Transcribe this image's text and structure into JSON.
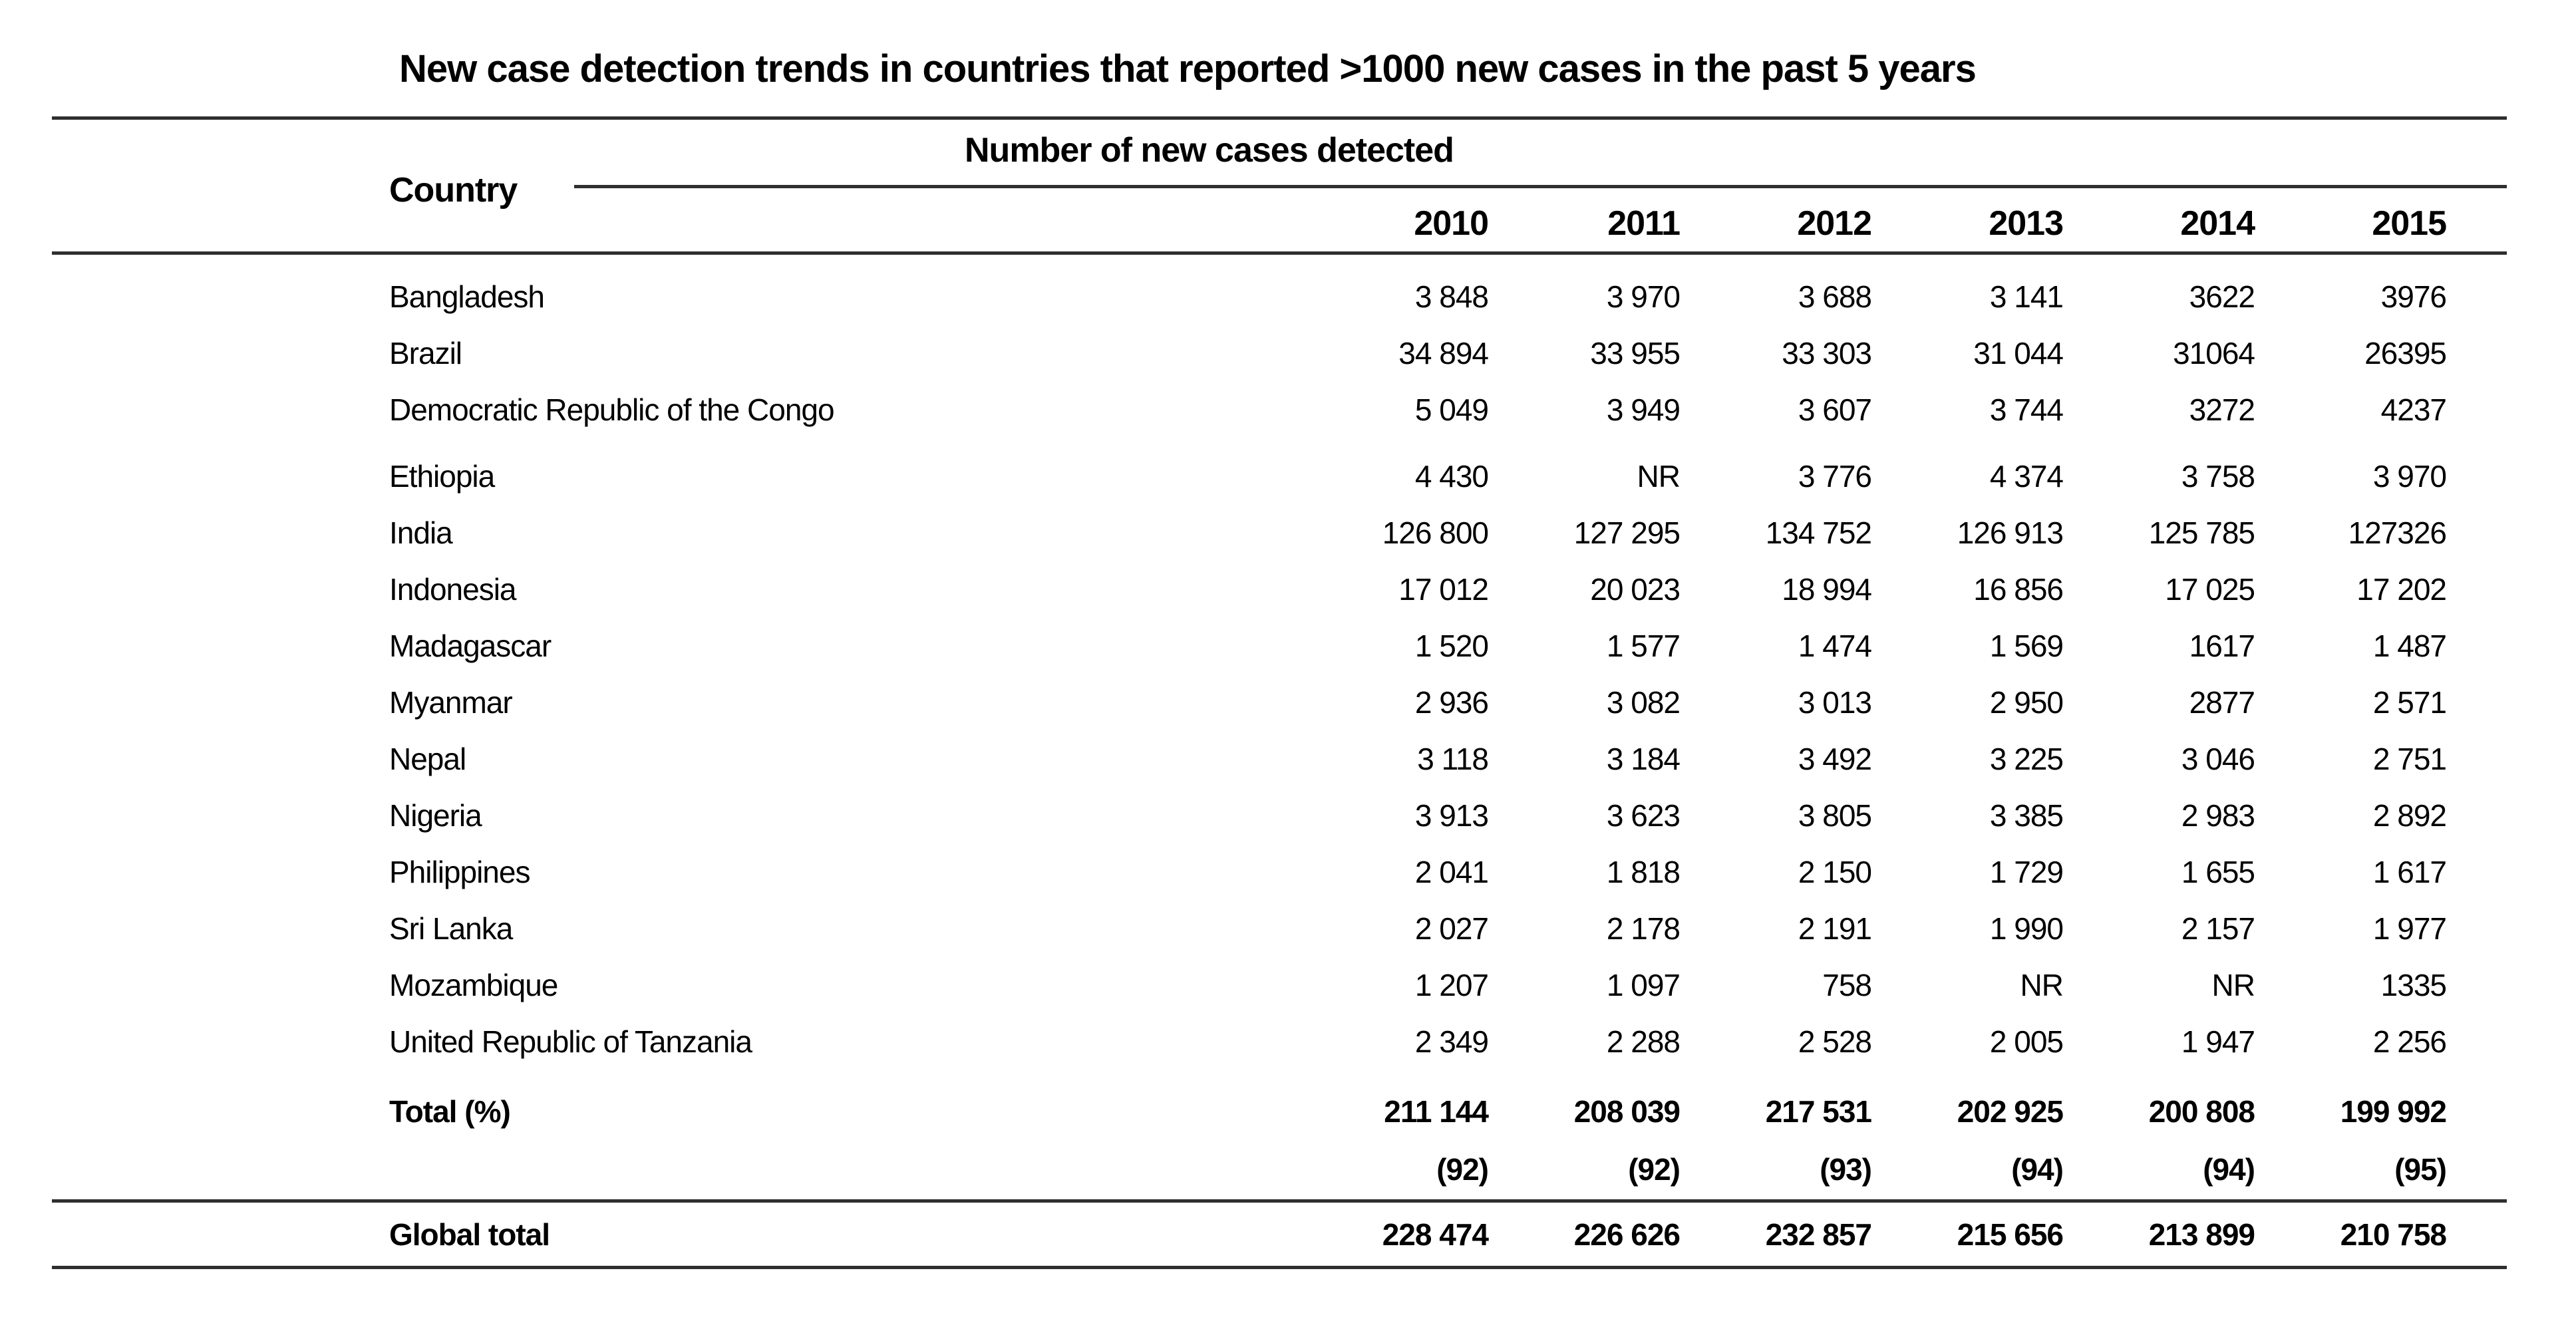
{
  "title": "New case detection trends in countries that reported >1000 new cases in the past 5 years",
  "table": {
    "country_header": "Country",
    "group_header": "Number of new cases detected",
    "years": [
      "2010",
      "2011",
      "2012",
      "2013",
      "2014",
      "2015"
    ],
    "rows": [
      {
        "country": "Bangladesh",
        "values": [
          "3 848",
          "3 970",
          "3 688",
          "3 141",
          "3622",
          "3976"
        ]
      },
      {
        "country": "Brazil",
        "values": [
          "34 894",
          "33 955",
          "33 303",
          "31 044",
          "31064",
          "26395"
        ]
      },
      {
        "country": "Democratic Republic of the Congo",
        "values": [
          "5 049",
          "3 949",
          "3 607",
          "3 744",
          "3272",
          "4237"
        ]
      },
      {
        "country": "Ethiopia",
        "values": [
          "4 430",
          "NR",
          "3 776",
          "4 374",
          "3 758",
          "3 970"
        ]
      },
      {
        "country": "India",
        "values": [
          "126 800",
          "127 295",
          "134 752",
          "126 913",
          "125 785",
          "127326"
        ]
      },
      {
        "country": "Indonesia",
        "values": [
          "17 012",
          "20 023",
          "18 994",
          "16 856",
          "17 025",
          "17 202"
        ]
      },
      {
        "country": "Madagascar",
        "values": [
          "1 520",
          "1 577",
          "1 474",
          "1 569",
          "1617",
          "1 487"
        ]
      },
      {
        "country": "Myanmar",
        "values": [
          "2 936",
          "3 082",
          "3 013",
          "2 950",
          "2877",
          "2 571"
        ]
      },
      {
        "country": "Nepal",
        "values": [
          "3 118",
          "3 184",
          "3 492",
          "3 225",
          "3 046",
          "2 751"
        ]
      },
      {
        "country": "Nigeria",
        "values": [
          "3 913",
          "3 623",
          "3 805",
          "3 385",
          "2 983",
          "2 892"
        ]
      },
      {
        "country": "Philippines",
        "values": [
          "2 041",
          "1 818",
          "2 150",
          "1 729",
          "1 655",
          "1 617"
        ]
      },
      {
        "country": "Sri Lanka",
        "values": [
          "2 027",
          "2 178",
          "2 191",
          "1 990",
          "2 157",
          "1 977"
        ]
      },
      {
        "country": "Mozambique",
        "values": [
          "1 207",
          "1 097",
          "758",
          "NR",
          "NR",
          "1335"
        ]
      },
      {
        "country": "United Republic of Tanzania",
        "values": [
          "2 349",
          "2 288",
          "2 528",
          "2 005",
          "1 947",
          "2 256"
        ]
      }
    ],
    "total_row": {
      "label": "Total (%)",
      "values": [
        "211 144",
        "208 039",
        "217 531",
        "202 925",
        "200 808",
        "199 992"
      ],
      "percents": [
        "(92)",
        "(92)",
        "(93)",
        "(94)",
        "(94)",
        "(95)"
      ]
    },
    "global_row": {
      "label": "Global total",
      "values": [
        "228 474",
        "226 626",
        "232 857",
        "215 656",
        "213 899",
        "210 758"
      ]
    }
  }
}
